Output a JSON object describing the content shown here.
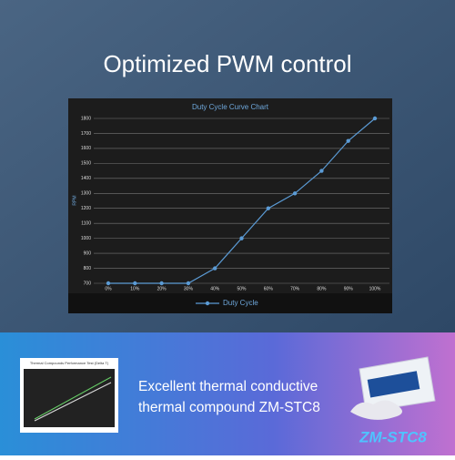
{
  "heading": "Optimized PWM control",
  "chart_data": {
    "type": "line",
    "title": "Duty Cycle Curve Chart",
    "y_label": "RPM",
    "categories": [
      "0%",
      "10%",
      "20%",
      "30%",
      "40%",
      "50%",
      "60%",
      "70%",
      "80%",
      "90%",
      "100%"
    ],
    "series": [
      {
        "name": "Duty Cycle",
        "color": "#5b9bd5",
        "values": [
          700,
          700,
          700,
          700,
          800,
          1000,
          1200,
          1300,
          1450,
          1650,
          1800
        ]
      }
    ],
    "ylim": [
      700,
      1800
    ],
    "yticks": [
      700,
      800,
      900,
      1000,
      1100,
      1200,
      1300,
      1400,
      1500,
      1600,
      1700,
      1800
    ],
    "grid": true,
    "legend": "bottom"
  },
  "feature": {
    "lines": [
      "Excellent thermal conductive",
      "thermal compound ZM-STC8"
    ],
    "inset_title": "Thermal Compounds Performance Test (Delta T)",
    "product_label": "ZM-STC8"
  }
}
